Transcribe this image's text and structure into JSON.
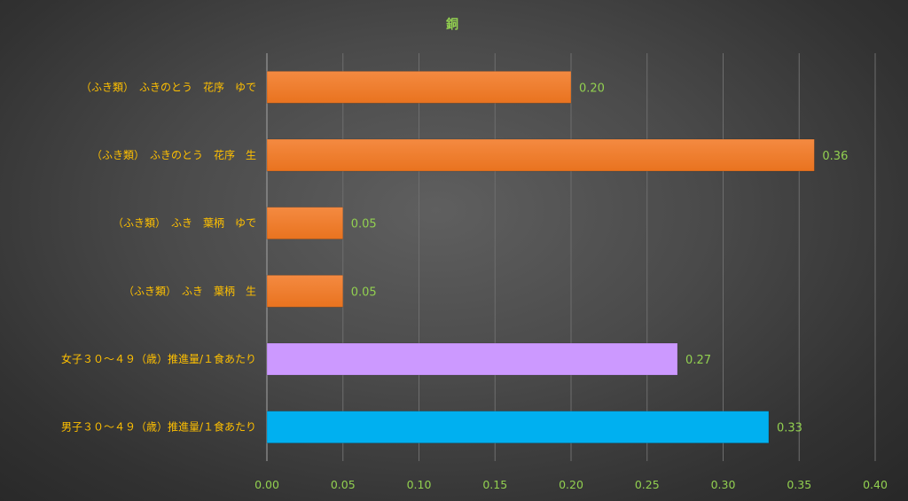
{
  "chart_data": {
    "type": "bar",
    "orientation": "horizontal",
    "title": "銅",
    "categories": [
      "（ふき類）　ふきのとう　花序　ゆで",
      "（ふき類）　ふきのとう　花序　生",
      "（ふき類）　ふき　葉柄　ゆで",
      "（ふき類）　ふき　葉柄　生",
      "女子３０～４９（歳）推進量/１食あたり",
      "男子３０～４９（歳）推進量/１食あたり"
    ],
    "values": [
      0.2,
      0.36,
      0.05,
      0.05,
      0.27,
      0.33
    ],
    "value_labels": [
      "0.20",
      "0.36",
      "0.05",
      "0.05",
      "0.27",
      "0.33"
    ],
    "bar_colors": [
      "#f07f33",
      "#f07f33",
      "#f07f33",
      "#f07f33",
      "#cc99ff",
      "#00b0f0"
    ],
    "xlim": [
      0,
      0.4
    ],
    "x_ticks": [
      "0.00",
      "0.05",
      "0.10",
      "0.15",
      "0.20",
      "0.25",
      "0.30",
      "0.35",
      "0.40"
    ],
    "xlabel": "",
    "ylabel": "",
    "grid": "vertical",
    "legend": "none",
    "colors": {
      "title": "#92d050",
      "category_labels": "#ffc000",
      "tick_labels": "#92d050",
      "data_labels": "#92d050",
      "gridlines": "#6e6e6e",
      "axis_line": "#a6a6a6"
    }
  }
}
